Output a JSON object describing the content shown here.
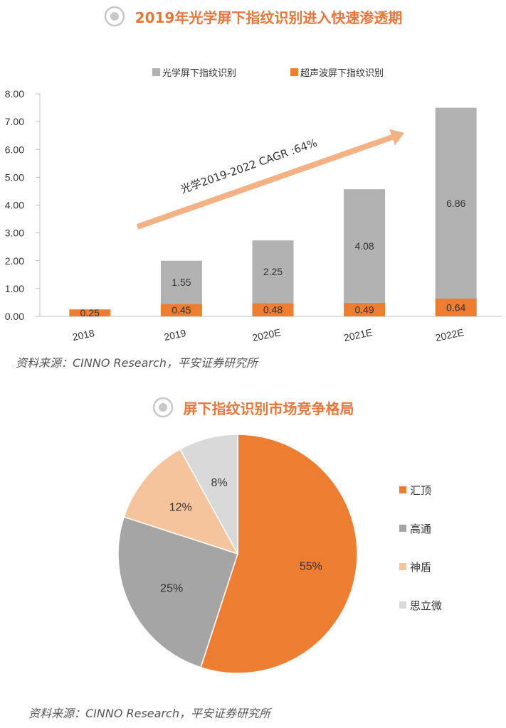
{
  "bar_section": {
    "title": "2019年光学屏下指纹识别进入快速渗透期",
    "source": "资料来源：CINNO Research，平安证券研究所",
    "annotation": "光学2019-2022 CAGR :64%"
  },
  "pie_section": {
    "title": "屏下指纹识别市场竞争格局",
    "source": "资料来源：CINNO Research，平安证券研究所"
  },
  "chart_data": [
    {
      "type": "bar",
      "stacked": true,
      "categories": [
        "2018",
        "2019",
        "2020E",
        "2021E",
        "2022E"
      ],
      "series": [
        {
          "name": "超声波屏下指纹识别",
          "values": [
            0.25,
            0.45,
            0.48,
            0.49,
            0.64
          ],
          "color": "#ed7d31"
        },
        {
          "name": "光学屏下指纹识别",
          "values": [
            null,
            1.55,
            2.25,
            4.08,
            6.86
          ],
          "color": "#b2b2b2"
        }
      ],
      "legend_order": [
        "光学屏下指纹识别",
        "超声波屏下指纹识别"
      ],
      "yticks": [
        "0.00",
        "1.00",
        "2.00",
        "3.00",
        "4.00",
        "5.00",
        "6.00",
        "7.00",
        "8.00"
      ],
      "ylim": [
        0,
        8
      ],
      "legend_position": "top"
    },
    {
      "type": "pie",
      "labels": [
        "汇顶",
        "高通",
        "神盾",
        "思立微"
      ],
      "values": [
        55,
        25,
        12,
        8
      ],
      "display": [
        "55%",
        "25%",
        "12%",
        "8%"
      ],
      "colors": [
        "#ed7d31",
        "#a5a5a5",
        "#f6c49c",
        "#d9d9d9"
      ],
      "legend_position": "right"
    }
  ]
}
